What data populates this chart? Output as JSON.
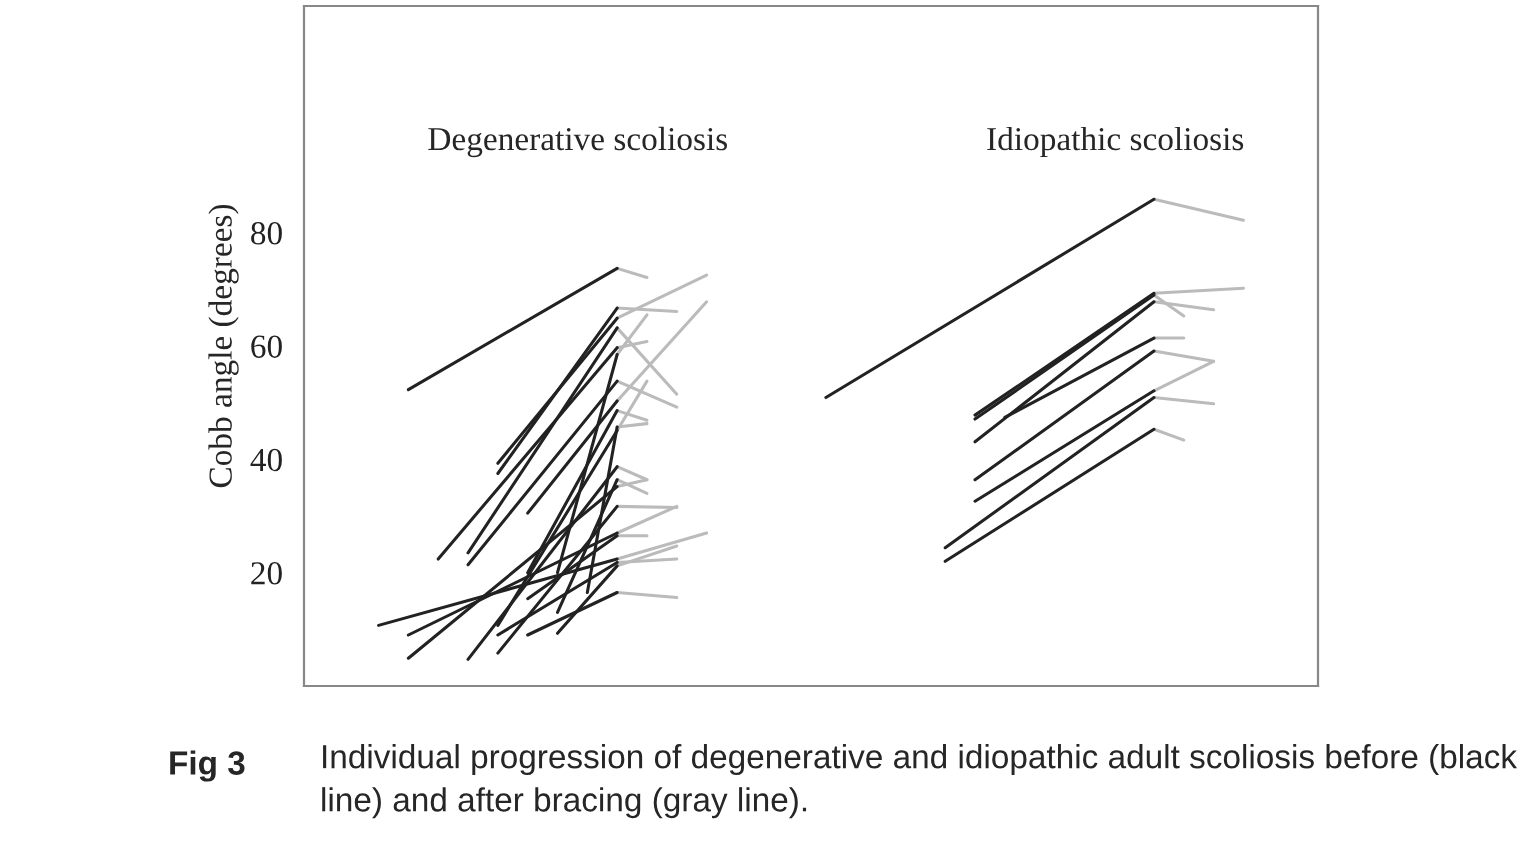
{
  "chart_data": {
    "type": "line",
    "ylabel": "Cobb angle (degrees)",
    "annotations": [
      "Degenerative scoliosis",
      "Idiopathic scoliosis",
      "Fig 3",
      "Individual progression of degenerative and idiopathic adult scoliosis before (black line) and after bracing (gray line)."
    ],
    "categories": [
      null,
      null,
      null,
      null,
      null,
      null,
      null,
      null,
      null,
      null,
      null,
      null,
      null,
      null,
      null,
      null,
      null,
      null,
      null,
      null,
      null,
      null,
      null,
      null,
      null,
      null,
      null,
      null,
      null,
      null,
      null,
      null,
      null,
      null
    ],
    "ylim": [
      0,
      120
    ],
    "yticks": [
      20,
      40,
      60,
      80
    ],
    "tick_labels": "y",
    "grid": false,
    "legend": false,
    "series": [
      {
        "color": "#bbbbbb",
        "values": [
          null,
          null,
          null,
          null,
          null,
          null,
          null,
          null,
          null,
          null,
          73.7,
          72.1,
          null,
          null,
          null,
          null,
          null,
          null,
          null,
          null,
          null,
          null,
          null,
          null,
          null,
          null,
          null,
          null,
          null,
          null,
          null,
          null,
          null,
          null
        ]
      },
      {
        "color": "#bbbbbb",
        "values": [
          null,
          null,
          null,
          null,
          null,
          null,
          null,
          null,
          null,
          null,
          66.7,
          null,
          66.1,
          null,
          null,
          null,
          null,
          null,
          null,
          null,
          null,
          null,
          null,
          null,
          null,
          null,
          null,
          null,
          null,
          null,
          null,
          null,
          null,
          null
        ]
      },
      {
        "color": "#bbbbbb",
        "values": [
          null,
          null,
          null,
          null,
          null,
          null,
          null,
          null,
          null,
          null,
          64.9,
          null,
          null,
          72.5,
          null,
          null,
          null,
          null,
          null,
          null,
          null,
          null,
          null,
          null,
          null,
          null,
          null,
          null,
          null,
          null,
          null,
          null,
          null,
          null
        ]
      },
      {
        "color": "#bbbbbb",
        "values": [
          null,
          null,
          null,
          null,
          null,
          null,
          null,
          null,
          null,
          null,
          59.7,
          60.8,
          null,
          null,
          null,
          null,
          null,
          null,
          null,
          null,
          null,
          null,
          null,
          null,
          null,
          null,
          null,
          null,
          null,
          null,
          null,
          null,
          null,
          null
        ]
      },
      {
        "color": "#bbbbbb",
        "values": [
          null,
          null,
          null,
          null,
          null,
          null,
          null,
          null,
          null,
          null,
          63.2,
          null,
          51.5,
          null,
          null,
          null,
          null,
          null,
          null,
          null,
          null,
          null,
          null,
          null,
          null,
          null,
          null,
          null,
          null,
          null,
          null,
          null,
          null,
          null
        ]
      },
      {
        "color": "#bbbbbb",
        "values": [
          null,
          null,
          null,
          null,
          null,
          null,
          null,
          null,
          null,
          null,
          53.8,
          null,
          49.2,
          null,
          null,
          null,
          null,
          null,
          null,
          null,
          null,
          null,
          null,
          null,
          null,
          null,
          null,
          null,
          null,
          null,
          null,
          null,
          null,
          null
        ]
      },
      {
        "color": "#bbbbbb",
        "values": [
          null,
          null,
          null,
          null,
          null,
          null,
          null,
          null,
          null,
          null,
          50.3,
          null,
          null,
          67.8,
          null,
          null,
          null,
          null,
          null,
          null,
          null,
          null,
          null,
          null,
          null,
          null,
          null,
          null,
          null,
          null,
          null,
          null,
          null,
          null
        ]
      },
      {
        "color": "#bbbbbb",
        "values": [
          null,
          null,
          null,
          null,
          null,
          null,
          null,
          null,
          null,
          null,
          48.6,
          46.9,
          null,
          null,
          null,
          null,
          null,
          null,
          null,
          null,
          null,
          null,
          null,
          null,
          null,
          null,
          null,
          null,
          null,
          null,
          null,
          null,
          null,
          null
        ]
      },
      {
        "color": "#bbbbbb",
        "values": [
          null,
          null,
          null,
          null,
          null,
          null,
          null,
          null,
          null,
          null,
          22.4,
          null,
          null,
          27.0,
          null,
          null,
          null,
          null,
          null,
          null,
          null,
          null,
          null,
          null,
          null,
          null,
          null,
          null,
          null,
          null,
          null,
          null,
          null,
          null
        ]
      },
      {
        "color": "#bbbbbb",
        "values": [
          null,
          null,
          null,
          null,
          null,
          null,
          null,
          null,
          null,
          null,
          27.0,
          null,
          31.7,
          null,
          null,
          null,
          null,
          null,
          null,
          null,
          null,
          null,
          null,
          null,
          null,
          null,
          null,
          null,
          null,
          null,
          null,
          null,
          null,
          null
        ]
      },
      {
        "color": "#bbbbbb",
        "values": [
          null,
          null,
          null,
          null,
          null,
          null,
          null,
          null,
          null,
          null,
          35.2,
          36.4,
          null,
          null,
          null,
          null,
          null,
          null,
          null,
          null,
          null,
          null,
          null,
          null,
          null,
          null,
          null,
          null,
          null,
          null,
          null,
          null,
          null,
          null
        ]
      },
      {
        "color": "#bbbbbb",
        "values": [
          null,
          null,
          null,
          null,
          null,
          null,
          null,
          null,
          null,
          null,
          38.7,
          36.4,
          null,
          null,
          null,
          null,
          null,
          null,
          null,
          null,
          null,
          null,
          null,
          null,
          null,
          null,
          null,
          null,
          null,
          null,
          null,
          null,
          null,
          null
        ]
      },
      {
        "color": "#bbbbbb",
        "values": [
          null,
          null,
          null,
          null,
          null,
          null,
          null,
          null,
          null,
          null,
          31.7,
          null,
          31.5,
          null,
          null,
          null,
          null,
          null,
          null,
          null,
          null,
          null,
          null,
          null,
          null,
          null,
          null,
          null,
          null,
          null,
          null,
          null,
          null,
          null
        ]
      },
      {
        "color": "#bbbbbb",
        "values": [
          null,
          null,
          null,
          null,
          null,
          null,
          null,
          null,
          null,
          null,
          21.8,
          null,
          22.4,
          null,
          null,
          null,
          null,
          null,
          null,
          null,
          null,
          null,
          null,
          null,
          null,
          null,
          null,
          null,
          null,
          null,
          null,
          null,
          null,
          null
        ]
      },
      {
        "color": "#bbbbbb",
        "values": [
          null,
          null,
          null,
          null,
          null,
          null,
          null,
          null,
          null,
          null,
          16.5,
          null,
          15.6,
          null,
          null,
          null,
          null,
          null,
          null,
          null,
          null,
          null,
          null,
          null,
          null,
          null,
          null,
          null,
          null,
          null,
          null,
          null,
          null,
          null
        ]
      },
      {
        "color": "#bbbbbb",
        "values": [
          null,
          null,
          null,
          null,
          null,
          null,
          null,
          null,
          null,
          null,
          21.2,
          null,
          24.7,
          null,
          null,
          null,
          null,
          null,
          null,
          null,
          null,
          null,
          null,
          null,
          null,
          null,
          null,
          null,
          null,
          null,
          null,
          null,
          null,
          null
        ]
      },
      {
        "color": "#bbbbbb",
        "values": [
          null,
          null,
          null,
          null,
          null,
          null,
          null,
          null,
          null,
          null,
          36.4,
          34.0,
          null,
          null,
          null,
          null,
          null,
          null,
          null,
          null,
          null,
          null,
          null,
          null,
          null,
          null,
          null,
          null,
          null,
          null,
          null,
          null,
          null,
          null
        ]
      },
      {
        "color": "#bbbbbb",
        "values": [
          null,
          null,
          null,
          null,
          null,
          null,
          null,
          null,
          null,
          null,
          45.7,
          46.3,
          null,
          null,
          null,
          null,
          null,
          null,
          null,
          null,
          null,
          null,
          null,
          null,
          null,
          null,
          null,
          null,
          null,
          null,
          null,
          null,
          null,
          null
        ]
      },
      {
        "color": "#bbbbbb",
        "values": [
          null,
          null,
          null,
          null,
          null,
          null,
          null,
          null,
          null,
          null,
          26.5,
          26.5,
          null,
          null,
          null,
          null,
          null,
          null,
          null,
          null,
          null,
          null,
          null,
          null,
          null,
          null,
          null,
          null,
          null,
          null,
          null,
          null,
          null,
          null
        ]
      },
      {
        "color": "#bbbbbb",
        "values": [
          null,
          null,
          null,
          null,
          null,
          null,
          null,
          null,
          null,
          null,
          45.1,
          53.8,
          null,
          null,
          null,
          null,
          null,
          null,
          null,
          null,
          null,
          null,
          null,
          null,
          null,
          null,
          null,
          null,
          null,
          null,
          null,
          null,
          null,
          null
        ]
      },
      {
        "color": "#bbbbbb",
        "values": [
          null,
          null,
          null,
          null,
          null,
          null,
          null,
          null,
          null,
          null,
          58.5,
          65.5,
          null,
          null,
          null,
          null,
          null,
          null,
          null,
          null,
          null,
          null,
          null,
          null,
          null,
          null,
          null,
          null,
          null,
          null,
          null,
          null,
          null,
          null
        ]
      },
      {
        "color": "#bbbbbb",
        "values": [
          null,
          null,
          null,
          null,
          null,
          null,
          null,
          null,
          null,
          null,
          null,
          null,
          null,
          null,
          null,
          null,
          null,
          null,
          null,
          null,
          null,
          null,
          null,
          null,
          null,
          null,
          null,
          null,
          85.9,
          null,
          null,
          82.2,
          null,
          null
        ]
      },
      {
        "color": "#bbbbbb",
        "values": [
          null,
          null,
          null,
          null,
          null,
          null,
          null,
          null,
          null,
          null,
          null,
          null,
          null,
          null,
          null,
          null,
          null,
          null,
          null,
          null,
          null,
          null,
          null,
          null,
          null,
          null,
          null,
          null,
          69.3,
          null,
          null,
          70.2,
          null,
          null
        ]
      },
      {
        "color": "#bbbbbb",
        "values": [
          null,
          null,
          null,
          null,
          null,
          null,
          null,
          null,
          null,
          null,
          null,
          null,
          null,
          null,
          null,
          null,
          null,
          null,
          null,
          null,
          null,
          null,
          null,
          null,
          null,
          null,
          null,
          null,
          69.0,
          65.3,
          null,
          null,
          null,
          null
        ]
      },
      {
        "color": "#bbbbbb",
        "values": [
          null,
          null,
          null,
          null,
          null,
          null,
          null,
          null,
          null,
          null,
          null,
          null,
          null,
          null,
          null,
          null,
          null,
          null,
          null,
          null,
          null,
          null,
          null,
          null,
          null,
          null,
          null,
          null,
          67.8,
          null,
          66.4,
          null,
          null,
          null
        ]
      },
      {
        "color": "#bbbbbb",
        "values": [
          null,
          null,
          null,
          null,
          null,
          null,
          null,
          null,
          null,
          null,
          null,
          null,
          null,
          null,
          null,
          null,
          null,
          null,
          null,
          null,
          null,
          null,
          null,
          null,
          null,
          null,
          null,
          null,
          61.4,
          61.4,
          null,
          null,
          null,
          null
        ]
      },
      {
        "color": "#bbbbbb",
        "values": [
          null,
          null,
          null,
          null,
          null,
          null,
          null,
          null,
          null,
          null,
          null,
          null,
          null,
          null,
          null,
          null,
          null,
          null,
          null,
          null,
          null,
          null,
          null,
          null,
          null,
          null,
          null,
          null,
          59.1,
          null,
          57.3,
          null,
          null,
          null
        ]
      },
      {
        "color": "#bbbbbb",
        "values": [
          null,
          null,
          null,
          null,
          null,
          null,
          null,
          null,
          null,
          null,
          null,
          null,
          null,
          null,
          null,
          null,
          null,
          null,
          null,
          null,
          null,
          null,
          null,
          null,
          null,
          null,
          null,
          null,
          52.1,
          null,
          57.3,
          null,
          null,
          null
        ]
      },
      {
        "color": "#bbbbbb",
        "values": [
          null,
          null,
          null,
          null,
          null,
          null,
          null,
          null,
          null,
          null,
          null,
          null,
          null,
          null,
          null,
          null,
          null,
          null,
          null,
          null,
          null,
          null,
          null,
          null,
          null,
          null,
          null,
          null,
          50.9,
          null,
          49.8,
          null,
          null,
          null
        ]
      },
      {
        "color": "#bbbbbb",
        "values": [
          null,
          null,
          null,
          null,
          null,
          null,
          null,
          null,
          null,
          null,
          null,
          null,
          null,
          null,
          null,
          null,
          null,
          null,
          null,
          null,
          null,
          null,
          null,
          null,
          null,
          null,
          null,
          null,
          45.3,
          43.4,
          null,
          null,
          null,
          null
        ]
      },
      {
        "color": "#222222",
        "values": [
          null,
          null,
          null,
          52.3,
          null,
          null,
          null,
          null,
          null,
          null,
          73.7,
          null,
          null,
          null,
          null,
          null,
          null,
          null,
          null,
          null,
          null,
          null,
          null,
          null,
          null,
          null,
          null,
          null,
          null,
          null,
          null,
          null,
          null,
          null
        ]
      },
      {
        "color": "#222222",
        "values": [
          null,
          null,
          null,
          null,
          null,
          null,
          37.5,
          null,
          null,
          null,
          66.7,
          null,
          null,
          null,
          null,
          null,
          null,
          null,
          null,
          null,
          null,
          null,
          null,
          null,
          null,
          null,
          null,
          null,
          null,
          null,
          null,
          null,
          null,
          null
        ]
      },
      {
        "color": "#222222",
        "values": [
          null,
          null,
          null,
          null,
          null,
          null,
          39.3,
          null,
          null,
          null,
          64.9,
          null,
          null,
          null,
          null,
          null,
          null,
          null,
          null,
          null,
          null,
          null,
          null,
          null,
          null,
          null,
          null,
          null,
          null,
          null,
          null,
          null,
          null,
          null
        ]
      },
      {
        "color": "#222222",
        "values": [
          null,
          null,
          null,
          null,
          22.4,
          null,
          null,
          null,
          null,
          null,
          59.7,
          null,
          null,
          null,
          null,
          null,
          null,
          null,
          null,
          null,
          null,
          null,
          null,
          null,
          null,
          null,
          null,
          null,
          null,
          null,
          null,
          null,
          null,
          null
        ]
      },
      {
        "color": "#222222",
        "values": [
          null,
          null,
          null,
          null,
          null,
          23.5,
          null,
          null,
          null,
          null,
          63.2,
          null,
          null,
          null,
          null,
          null,
          null,
          null,
          null,
          null,
          null,
          null,
          null,
          null,
          null,
          null,
          null,
          null,
          null,
          null,
          null,
          null,
          null,
          null
        ]
      },
      {
        "color": "#222222",
        "values": [
          null,
          null,
          null,
          null,
          null,
          21.4,
          null,
          null,
          null,
          null,
          53.8,
          null,
          null,
          null,
          null,
          null,
          null,
          null,
          null,
          null,
          null,
          null,
          null,
          null,
          null,
          null,
          null,
          null,
          null,
          null,
          null,
          null,
          null,
          null
        ]
      },
      {
        "color": "#222222",
        "values": [
          null,
          null,
          null,
          null,
          null,
          null,
          null,
          30.5,
          null,
          null,
          50.3,
          null,
          null,
          null,
          null,
          null,
          null,
          null,
          null,
          null,
          null,
          null,
          null,
          null,
          null,
          null,
          null,
          null,
          null,
          null,
          null,
          null,
          null,
          null
        ]
      },
      {
        "color": "#222222",
        "values": [
          null,
          null,
          null,
          null,
          null,
          null,
          null,
          20.0,
          null,
          null,
          48.6,
          null,
          null,
          null,
          null,
          null,
          null,
          null,
          null,
          null,
          null,
          null,
          null,
          null,
          null,
          null,
          null,
          null,
          null,
          null,
          null,
          null,
          null,
          null
        ]
      },
      {
        "color": "#222222",
        "values": [
          null,
          null,
          10.7,
          null,
          null,
          null,
          null,
          null,
          null,
          null,
          22.4,
          null,
          null,
          null,
          null,
          null,
          null,
          null,
          null,
          null,
          null,
          null,
          null,
          null,
          null,
          null,
          null,
          null,
          null,
          null,
          null,
          null,
          null,
          null
        ]
      },
      {
        "color": "#222222",
        "values": [
          null,
          null,
          null,
          9.0,
          null,
          null,
          null,
          null,
          null,
          null,
          27.0,
          null,
          null,
          null,
          null,
          null,
          null,
          null,
          null,
          null,
          null,
          null,
          null,
          null,
          null,
          null,
          null,
          null,
          null,
          null,
          null,
          null,
          null,
          null
        ]
      },
      {
        "color": "#222222",
        "values": [
          null,
          null,
          null,
          4.9,
          null,
          null,
          null,
          null,
          null,
          null,
          35.2,
          null,
          null,
          null,
          null,
          null,
          null,
          null,
          null,
          null,
          null,
          null,
          null,
          null,
          null,
          null,
          null,
          null,
          null,
          null,
          null,
          null,
          null,
          null
        ]
      },
      {
        "color": "#222222",
        "values": [
          null,
          null,
          null,
          null,
          null,
          4.7,
          null,
          null,
          null,
          null,
          38.7,
          null,
          null,
          null,
          null,
          null,
          null,
          null,
          null,
          null,
          null,
          null,
          null,
          null,
          null,
          null,
          null,
          null,
          null,
          null,
          null,
          null,
          null,
          null
        ]
      },
      {
        "color": "#222222",
        "values": [
          null,
          null,
          null,
          null,
          null,
          null,
          5.8,
          null,
          null,
          null,
          31.7,
          null,
          null,
          null,
          null,
          null,
          null,
          null,
          null,
          null,
          null,
          null,
          null,
          null,
          null,
          null,
          null,
          null,
          null,
          null,
          null,
          null,
          null,
          null
        ]
      },
      {
        "color": "#222222",
        "values": [
          null,
          null,
          null,
          null,
          null,
          null,
          9.0,
          null,
          null,
          null,
          21.8,
          null,
          null,
          null,
          null,
          null,
          null,
          null,
          null,
          null,
          null,
          null,
          null,
          null,
          null,
          null,
          null,
          null,
          null,
          null,
          null,
          null,
          null,
          null
        ]
      },
      {
        "color": "#222222",
        "values": [
          null,
          null,
          null,
          null,
          null,
          null,
          null,
          9.0,
          null,
          null,
          16.5,
          null,
          null,
          null,
          null,
          null,
          null,
          null,
          null,
          null,
          null,
          null,
          null,
          null,
          null,
          null,
          null,
          null,
          null,
          null,
          null,
          null,
          null,
          null
        ]
      },
      {
        "color": "#222222",
        "values": [
          null,
          null,
          null,
          null,
          null,
          null,
          null,
          null,
          9.3,
          null,
          21.2,
          null,
          null,
          null,
          null,
          null,
          null,
          null,
          null,
          null,
          null,
          null,
          null,
          null,
          null,
          null,
          null,
          null,
          null,
          null,
          null,
          null,
          null,
          null
        ]
      },
      {
        "color": "#222222",
        "values": [
          null,
          null,
          null,
          null,
          null,
          null,
          null,
          null,
          13.0,
          null,
          36.4,
          null,
          null,
          null,
          null,
          null,
          null,
          null,
          null,
          null,
          null,
          null,
          null,
          null,
          null,
          null,
          null,
          null,
          null,
          null,
          null,
          null,
          null,
          null
        ]
      },
      {
        "color": "#222222",
        "values": [
          null,
          null,
          null,
          null,
          null,
          null,
          null,
          null,
          null,
          16.5,
          45.7,
          null,
          null,
          null,
          null,
          null,
          null,
          null,
          null,
          null,
          null,
          null,
          null,
          null,
          null,
          null,
          null,
          null,
          null,
          null,
          null,
          null,
          null,
          null
        ]
      },
      {
        "color": "#222222",
        "values": [
          null,
          null,
          null,
          null,
          null,
          null,
          null,
          15.4,
          null,
          null,
          26.5,
          null,
          null,
          null,
          null,
          null,
          null,
          null,
          null,
          null,
          null,
          null,
          null,
          null,
          null,
          null,
          null,
          null,
          null,
          null,
          null,
          null,
          null,
          null
        ]
      },
      {
        "color": "#222222",
        "values": [
          null,
          null,
          null,
          null,
          null,
          null,
          10.7,
          null,
          null,
          null,
          45.1,
          null,
          null,
          null,
          null,
          null,
          null,
          null,
          null,
          null,
          null,
          null,
          null,
          null,
          null,
          null,
          null,
          null,
          null,
          null,
          null,
          null,
          null,
          null
        ]
      },
      {
        "color": "#222222",
        "values": [
          null,
          null,
          null,
          null,
          null,
          null,
          null,
          null,
          20.0,
          null,
          58.5,
          null,
          null,
          null,
          null,
          null,
          null,
          null,
          null,
          null,
          null,
          null,
          null,
          null,
          null,
          null,
          null,
          null,
          null,
          null,
          null,
          null,
          null,
          null
        ]
      },
      {
        "color": "#222222",
        "values": [
          null,
          null,
          null,
          null,
          null,
          null,
          null,
          null,
          null,
          null,
          null,
          null,
          null,
          null,
          null,
          null,
          null,
          50.9,
          null,
          null,
          null,
          null,
          null,
          null,
          null,
          null,
          null,
          null,
          85.9,
          null,
          null,
          null,
          null,
          null
        ]
      },
      {
        "color": "#222222",
        "values": [
          null,
          null,
          null,
          null,
          null,
          null,
          null,
          null,
          null,
          null,
          null,
          null,
          null,
          null,
          null,
          null,
          null,
          null,
          null,
          null,
          null,
          null,
          47.8,
          null,
          null,
          null,
          null,
          null,
          69.3,
          null,
          null,
          null,
          null,
          null
        ]
      },
      {
        "color": "#222222",
        "values": [
          null,
          null,
          null,
          null,
          null,
          null,
          null,
          null,
          null,
          null,
          null,
          null,
          null,
          null,
          null,
          null,
          null,
          null,
          null,
          null,
          null,
          null,
          47.1,
          null,
          null,
          null,
          null,
          null,
          69.0,
          null,
          null,
          null,
          null,
          null
        ]
      },
      {
        "color": "#222222",
        "values": [
          null,
          null,
          null,
          null,
          null,
          null,
          null,
          null,
          null,
          null,
          null,
          null,
          null,
          null,
          null,
          null,
          null,
          null,
          null,
          null,
          null,
          null,
          43.1,
          null,
          null,
          null,
          null,
          null,
          67.8,
          null,
          null,
          null,
          null,
          null
        ]
      },
      {
        "color": "#222222",
        "values": [
          null,
          null,
          null,
          null,
          null,
          null,
          null,
          null,
          null,
          null,
          null,
          null,
          null,
          null,
          null,
          null,
          null,
          null,
          null,
          null,
          null,
          null,
          null,
          47.4,
          null,
          null,
          null,
          null,
          61.4,
          null,
          null,
          null,
          null,
          null
        ]
      },
      {
        "color": "#222222",
        "values": [
          null,
          null,
          null,
          null,
          null,
          null,
          null,
          null,
          null,
          null,
          null,
          null,
          null,
          null,
          null,
          null,
          null,
          null,
          null,
          null,
          null,
          null,
          36.4,
          null,
          null,
          null,
          null,
          null,
          59.1,
          null,
          null,
          null,
          null,
          null
        ]
      },
      {
        "color": "#222222",
        "values": [
          null,
          null,
          null,
          null,
          null,
          null,
          null,
          null,
          null,
          null,
          null,
          null,
          null,
          null,
          null,
          null,
          null,
          null,
          null,
          null,
          null,
          null,
          32.6,
          null,
          null,
          null,
          null,
          null,
          52.1,
          null,
          null,
          null,
          null,
          null
        ]
      },
      {
        "color": "#222222",
        "values": [
          null,
          null,
          null,
          null,
          null,
          null,
          null,
          null,
          null,
          null,
          null,
          null,
          null,
          null,
          null,
          null,
          null,
          null,
          null,
          null,
          null,
          24.4,
          null,
          null,
          null,
          null,
          null,
          null,
          50.9,
          null,
          null,
          null,
          null,
          null
        ]
      },
      {
        "color": "#222222",
        "values": [
          null,
          null,
          null,
          null,
          null,
          null,
          null,
          null,
          null,
          null,
          null,
          null,
          null,
          null,
          null,
          null,
          null,
          null,
          null,
          null,
          null,
          22.0,
          null,
          null,
          null,
          null,
          null,
          null,
          45.3,
          null,
          null,
          null,
          null,
          null
        ]
      }
    ]
  }
}
